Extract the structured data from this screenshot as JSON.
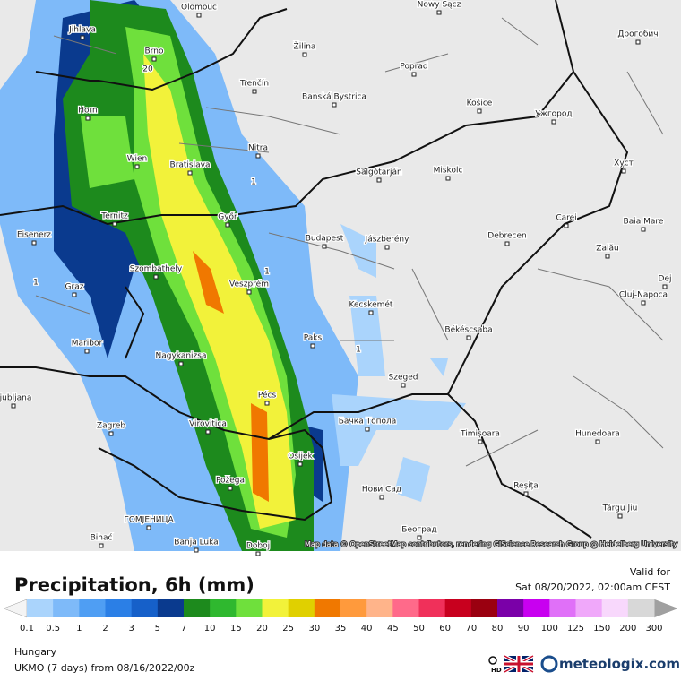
{
  "map": {
    "places": [
      "Olomouc",
      "Nowy Sącz",
      "Дрогобич",
      "Jihlava",
      "Brno",
      "Žilina",
      "Poprad",
      "Trenčín",
      "Banská Bystrica",
      "Košice",
      "Ужгород",
      "Horn",
      "Nitra",
      "Wien",
      "Bratislava",
      "Salgótarján",
      "Miskolc",
      "Хуст",
      "Ternitz",
      "Győr",
      "Carei",
      "Baia Mare",
      "Eisenerz",
      "Budapest",
      "Jászberény",
      "Debrecen",
      "Szombathely",
      "Zalău",
      "Dej",
      "Graz",
      "Veszprém",
      "Kecskemét",
      "Cluj-Napoca",
      "Paks",
      "Békéscsaba",
      "Maribor",
      "Nagykanizsa",
      "Szeged",
      "Ljubljana",
      "Pécs",
      "Бачка Топола",
      "Zagreb",
      "Virovitica",
      "Timișoara",
      "Hunedoara",
      "Osijek",
      "Požega",
      "Нови Сад",
      "Reșița",
      "Târgu Jiu",
      "ГОМЈЕНИЦА",
      "Bihać",
      "Banja Luka",
      "Doboj",
      "Београд"
    ],
    "contour_labels": [
      20,
      1,
      1,
      1,
      1
    ],
    "attribution": "Map data © OpenStreetMap contributors, rendering GIScience Research Group @ Heidelberg University"
  },
  "legend": {
    "title": "Precipitation, 6h (mm)",
    "valid_label": "Valid for",
    "valid_time": "Sat 08/20/2022, 02:00am CEST",
    "labels": [
      0.1,
      0.5,
      1,
      2,
      3,
      5,
      7,
      10,
      15,
      20,
      25,
      30,
      35,
      40,
      45,
      50,
      60,
      70,
      80,
      90,
      100,
      125,
      150,
      200,
      300
    ],
    "colors": [
      "#aad4fc",
      "#7ebaf9",
      "#4f9ef3",
      "#2b7fe6",
      "#1660c9",
      "#0a3a8e",
      "#1d8a1d",
      "#2fb82f",
      "#6fe03c",
      "#f2f23a",
      "#e0d000",
      "#f07800",
      "#ff9a3c",
      "#ffb48a",
      "#ff6a8a",
      "#f0305a",
      "#c8001e",
      "#9a0010",
      "#7a00a8",
      "#c800f0",
      "#e070f8",
      "#f0a8fa",
      "#f8d8fc",
      "#d8d8d8"
    ],
    "low_color": "#f4f4f4",
    "high_color": "#a0a0a0"
  },
  "footer": {
    "region": "Hungary",
    "model": "UKMO (7 days) from 08/16/2022/00z",
    "hd": "HD",
    "brand": "meteologix.com"
  }
}
